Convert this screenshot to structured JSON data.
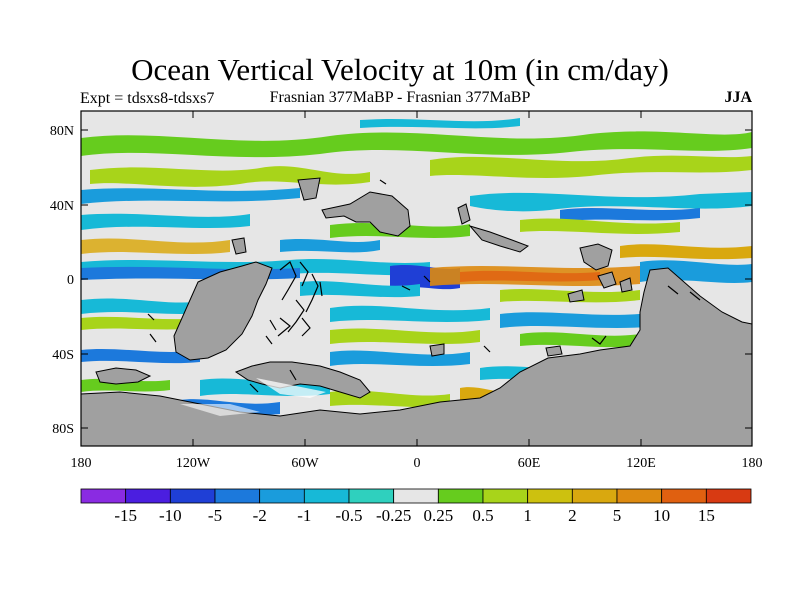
{
  "title": "Ocean Vertical Velocity at 10m (in cm/day)",
  "experiment_label": "Expt = tdsxs8-tdsxs7",
  "period_label": "Frasnian 377MaBP - Frasnian 377MaBP",
  "season_label": "JJA",
  "lat_ticks": [
    "80N",
    "40N",
    "0",
    "40S",
    "80S"
  ],
  "lon_ticks": [
    "180",
    "120W",
    "60W",
    "0",
    "60E",
    "120E",
    "180"
  ],
  "colorbar": {
    "colors": [
      "#8a2be2",
      "#4b1ee0",
      "#1f3fd6",
      "#1c79dc",
      "#1a9cdc",
      "#17b9d7",
      "#2fd0be",
      "#e6e6e6",
      "#66cc1e",
      "#a8d41a",
      "#cdc10f",
      "#d9a80f",
      "#dd8a10",
      "#e06010",
      "#d83a12"
    ],
    "labels": [
      "-15",
      "-10",
      "-5",
      "-2",
      "-1",
      "-0.5",
      "-0.25",
      "0.25",
      "0.5",
      "1",
      "2",
      "5",
      "10",
      "15"
    ]
  }
}
